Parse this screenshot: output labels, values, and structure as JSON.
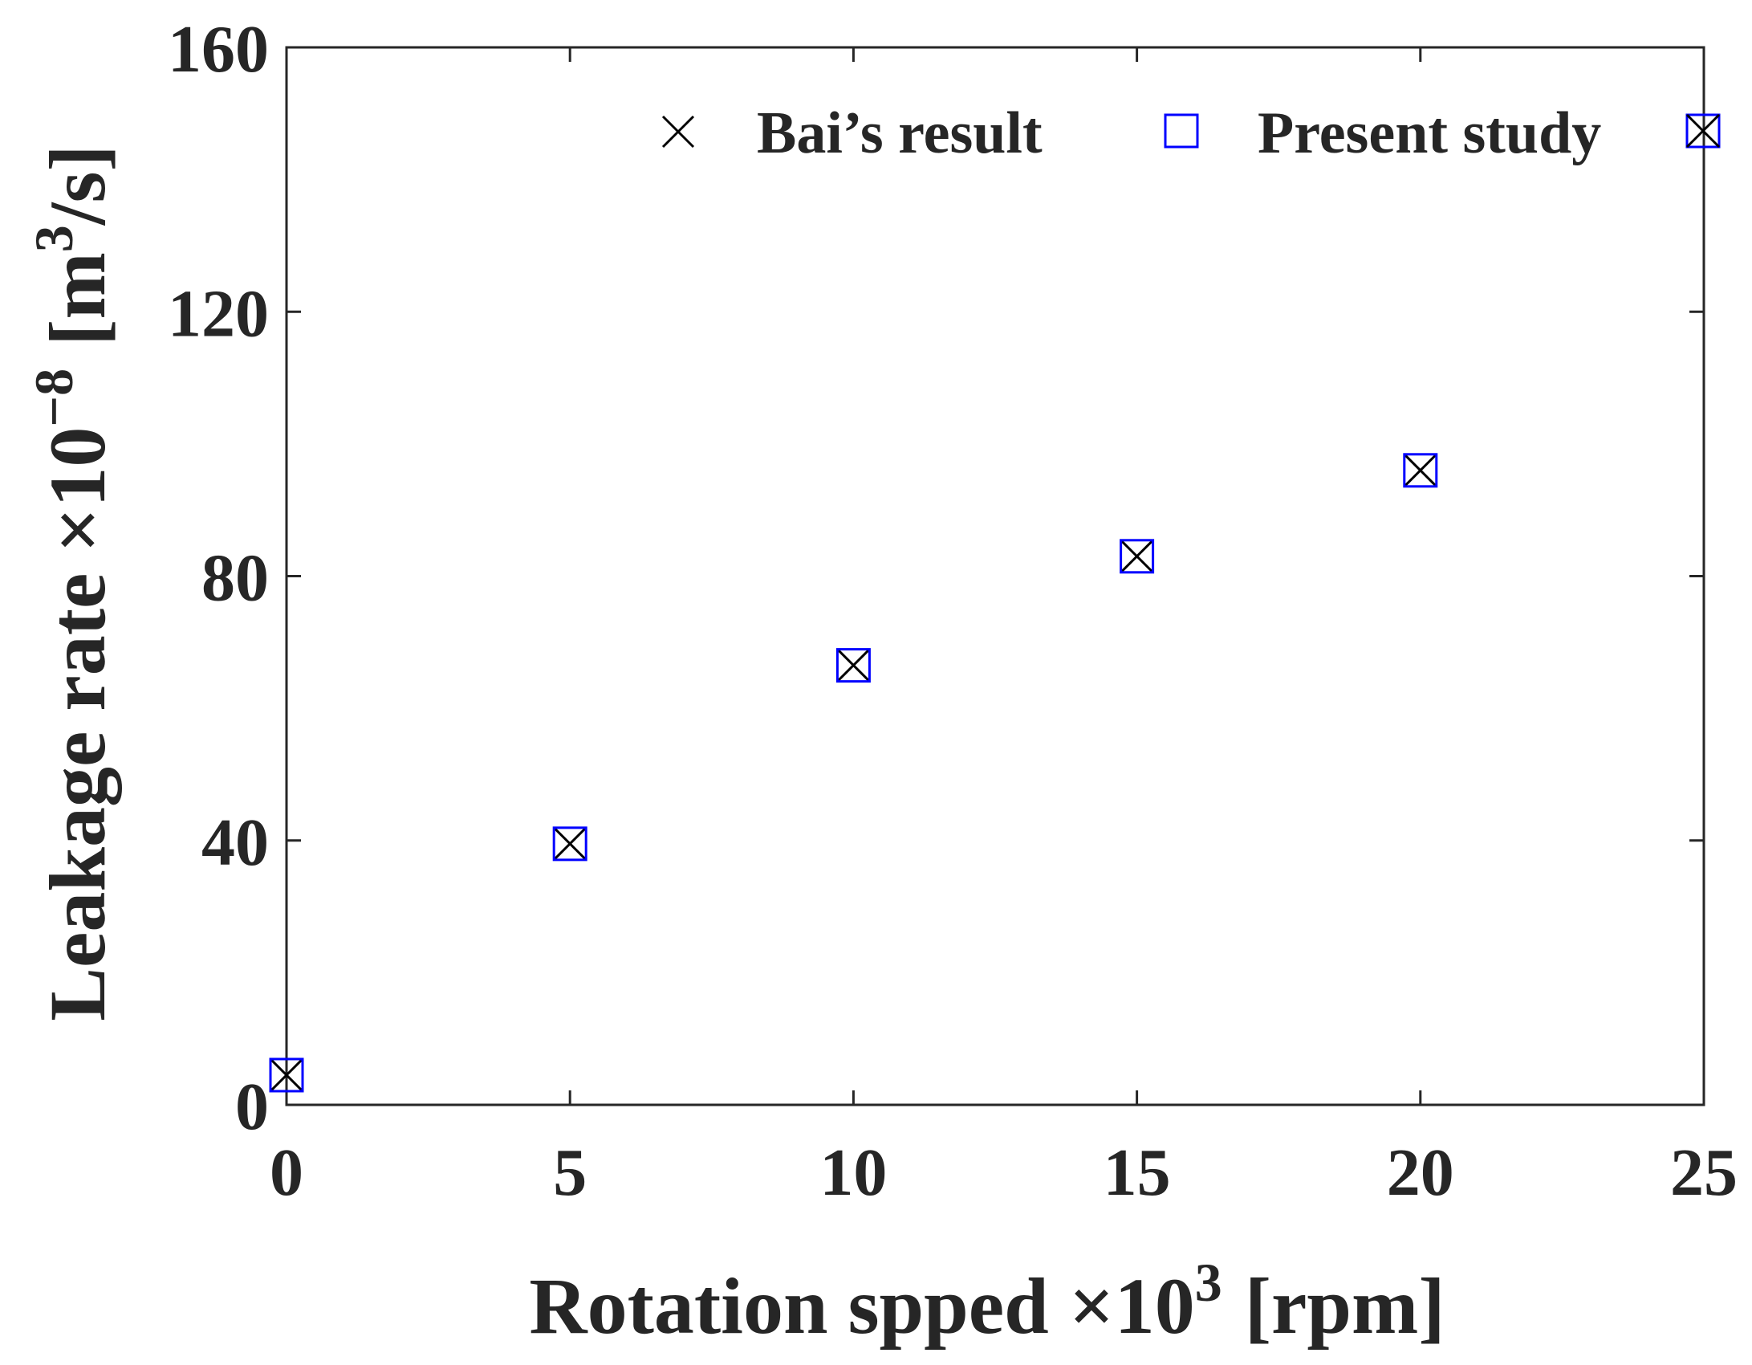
{
  "chart_data": {
    "type": "scatter",
    "xlabel": "Rotation spped ×10",
    "xlabel_exponent": "3",
    "xlabel_unit": "[rpm]",
    "ylabel": "Leakage rate ×10",
    "ylabel_exponent": "−8",
    "ylabel_unit_prefix": "[m",
    "ylabel_unit_exponent": "3",
    "ylabel_unit_suffix": "/s]",
    "xlim": [
      0,
      25
    ],
    "ylim": [
      0,
      160
    ],
    "xticks": [
      0,
      5,
      10,
      15,
      20,
      25
    ],
    "yticks": [
      0,
      40,
      80,
      120,
      160
    ],
    "xtick_labels": [
      "0",
      "5",
      "10",
      "15",
      "20",
      "25"
    ],
    "ytick_labels": [
      "0",
      "40",
      "80",
      "120",
      "160"
    ],
    "grid": false,
    "legend_position": "top-right",
    "series": [
      {
        "name": "Bai’s result",
        "marker": "x",
        "color": "#000000",
        "x": [
          0,
          5,
          10,
          15,
          20
        ],
        "y": [
          4.5,
          39.5,
          66.5,
          83,
          96
        ]
      },
      {
        "name": "Present study",
        "marker": "square",
        "color": "#0000ff",
        "x": [
          0,
          5,
          10,
          15,
          20
        ],
        "y": [
          4.5,
          39.5,
          66.5,
          83,
          96
        ]
      }
    ]
  }
}
